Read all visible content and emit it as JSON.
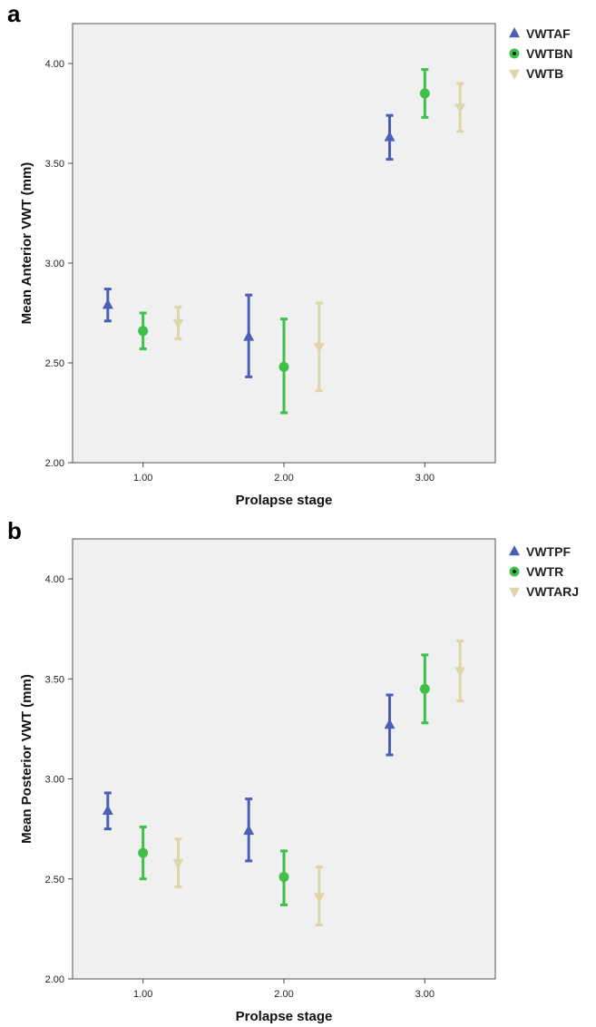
{
  "chart_data": [
    {
      "type": "scatter",
      "panel_label": "a",
      "xlabel": "Prolapse stage",
      "ylabel": "Mean Anterior VWT (mm)",
      "x_ticks": [
        "1.00",
        "2.00",
        "3.00"
      ],
      "y_ticks": [
        "2.00",
        "2.50",
        "3.00",
        "3.50",
        "4.00"
      ],
      "ylim": [
        2.0,
        4.2
      ],
      "xlim": [
        0.5,
        3.5
      ],
      "grid": false,
      "legend_position": "right",
      "series": [
        {
          "name": "VWTAF",
          "marker": "triangle-up",
          "color": "#4a5fb5",
          "offset": -0.25,
          "points": [
            {
              "x": 1,
              "y": 2.79,
              "low": 2.71,
              "high": 2.87
            },
            {
              "x": 2,
              "y": 2.63,
              "low": 2.43,
              "high": 2.84
            },
            {
              "x": 3,
              "y": 3.63,
              "low": 3.52,
              "high": 3.74
            }
          ]
        },
        {
          "name": "VWTBN",
          "marker": "circle",
          "color": "#3ec04a",
          "offset": 0,
          "points": [
            {
              "x": 1,
              "y": 2.66,
              "low": 2.57,
              "high": 2.75
            },
            {
              "x": 2,
              "y": 2.48,
              "low": 2.25,
              "high": 2.72
            },
            {
              "x": 3,
              "y": 3.85,
              "low": 3.73,
              "high": 3.97
            }
          ]
        },
        {
          "name": "VWTB",
          "marker": "triangle-down",
          "color": "#ddd6a8",
          "offset": 0.25,
          "points": [
            {
              "x": 1,
              "y": 2.7,
              "low": 2.62,
              "high": 2.78
            },
            {
              "x": 2,
              "y": 2.58,
              "low": 2.36,
              "high": 2.8
            },
            {
              "x": 3,
              "y": 3.78,
              "low": 3.66,
              "high": 3.9
            }
          ]
        }
      ]
    },
    {
      "type": "scatter",
      "panel_label": "b",
      "xlabel": "Prolapse stage",
      "ylabel": "Mean Posterior VWT (mm)",
      "x_ticks": [
        "1.00",
        "2.00",
        "3.00"
      ],
      "y_ticks": [
        "2.00",
        "2.50",
        "3.00",
        "3.50",
        "4.00"
      ],
      "ylim": [
        2.0,
        4.2
      ],
      "xlim": [
        0.5,
        3.5
      ],
      "grid": false,
      "legend_position": "right",
      "series": [
        {
          "name": "VWTPF",
          "marker": "triangle-up",
          "color": "#4a5fb5",
          "offset": -0.25,
          "points": [
            {
              "x": 1,
              "y": 2.84,
              "low": 2.75,
              "high": 2.93
            },
            {
              "x": 2,
              "y": 2.74,
              "low": 2.59,
              "high": 2.9
            },
            {
              "x": 3,
              "y": 3.27,
              "low": 3.12,
              "high": 3.42
            }
          ]
        },
        {
          "name": "VWTR",
          "marker": "circle",
          "color": "#3ec04a",
          "offset": 0,
          "points": [
            {
              "x": 1,
              "y": 2.63,
              "low": 2.5,
              "high": 2.76
            },
            {
              "x": 2,
              "y": 2.51,
              "low": 2.37,
              "high": 2.64
            },
            {
              "x": 3,
              "y": 3.45,
              "low": 3.28,
              "high": 3.62
            }
          ]
        },
        {
          "name": "VWTARJ",
          "marker": "triangle-down",
          "color": "#ddd6a8",
          "offset": 0.25,
          "points": [
            {
              "x": 1,
              "y": 2.58,
              "low": 2.46,
              "high": 2.7
            },
            {
              "x": 2,
              "y": 2.41,
              "low": 2.27,
              "high": 2.56
            },
            {
              "x": 3,
              "y": 3.54,
              "low": 3.39,
              "high": 3.69
            }
          ]
        }
      ]
    }
  ]
}
